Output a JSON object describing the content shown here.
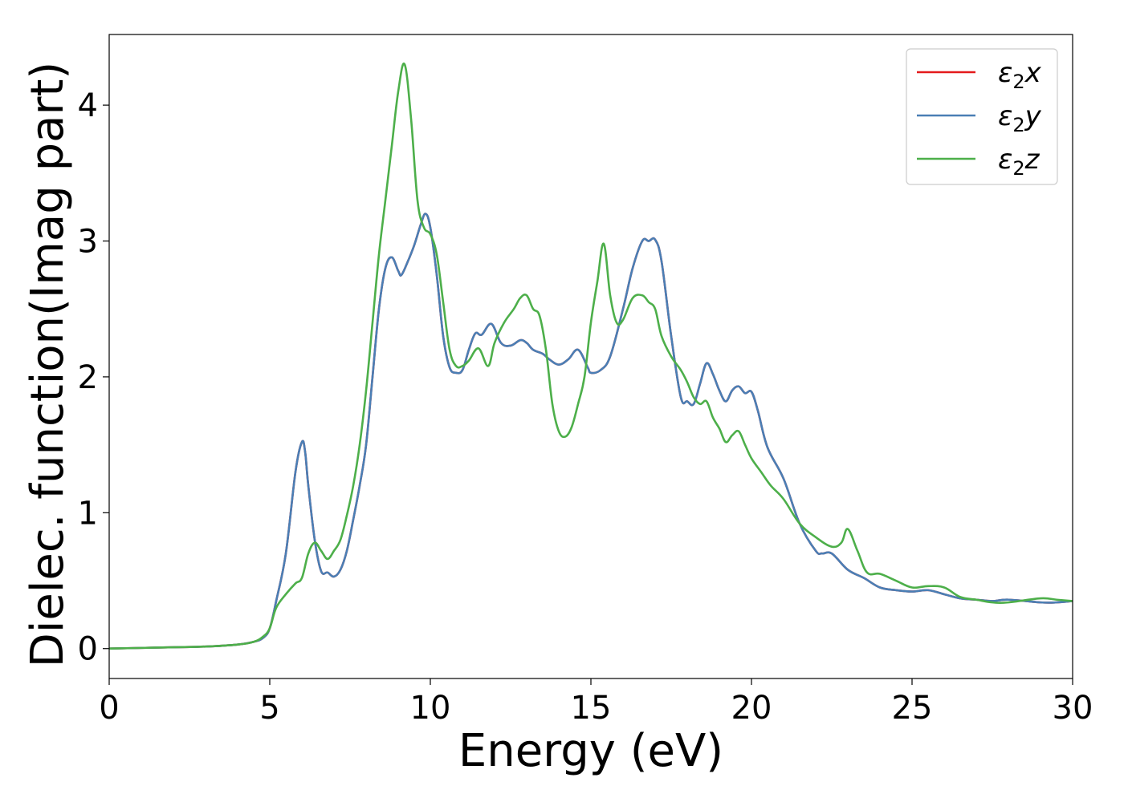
{
  "chart_data": {
    "type": "line",
    "title": "",
    "xlabel": "Energy (eV)",
    "ylabel": "Dielec. function(Imag part)",
    "xlim": [
      0,
      30
    ],
    "ylim": [
      -0.22,
      4.52
    ],
    "xticks": [
      0,
      5,
      10,
      15,
      20,
      25,
      30
    ],
    "xtick_labels": [
      "0",
      "5",
      "10",
      "15",
      "20",
      "25",
      "30"
    ],
    "yticks": [
      0,
      1,
      2,
      3,
      4
    ],
    "ytick_labels": [
      "0",
      "1",
      "2",
      "3",
      "4"
    ],
    "grid": false,
    "legend_position": "top-right",
    "series": [
      {
        "name": "ε2x",
        "legend_base": "ε",
        "legend_sub": "2",
        "legend_suffix": "x",
        "color": "#e41a1c",
        "x": [
          0,
          1,
          2,
          3,
          4,
          4.5,
          4.8,
          5.0,
          5.2,
          5.5,
          5.8,
          6.0,
          6.1,
          6.2,
          6.4,
          6.6,
          6.8,
          7.0,
          7.2,
          7.4,
          7.6,
          7.8,
          8.0,
          8.2,
          8.4,
          8.6,
          8.8,
          9.0,
          9.1,
          9.3,
          9.5,
          9.7,
          9.85,
          10.0,
          10.2,
          10.4,
          10.6,
          10.8,
          11.0,
          11.2,
          11.4,
          11.6,
          11.9,
          12.2,
          12.5,
          12.8,
          13.0,
          13.2,
          13.5,
          13.7,
          14.0,
          14.3,
          14.6,
          14.9,
          15.0,
          15.3,
          15.6,
          16.0,
          16.3,
          16.6,
          16.8,
          17.0,
          17.2,
          17.5,
          17.8,
          18.0,
          18.2,
          18.4,
          18.6,
          18.8,
          19.0,
          19.2,
          19.4,
          19.6,
          19.8,
          20.0,
          20.2,
          20.5,
          21.0,
          21.5,
          22.0,
          22.2,
          22.5,
          23.0,
          23.5,
          24.0,
          24.5,
          25.0,
          25.5,
          26.0,
          26.5,
          27.0,
          27.5,
          28.0,
          29.0,
          29.5,
          30.0
        ],
        "values": [
          0.0,
          0.005,
          0.01,
          0.015,
          0.03,
          0.05,
          0.08,
          0.15,
          0.35,
          0.7,
          1.3,
          1.52,
          1.45,
          1.2,
          0.8,
          0.57,
          0.56,
          0.53,
          0.58,
          0.72,
          0.95,
          1.2,
          1.5,
          2.0,
          2.5,
          2.8,
          2.88,
          2.78,
          2.75,
          2.85,
          2.97,
          3.12,
          3.2,
          3.1,
          2.75,
          2.3,
          2.07,
          2.03,
          2.05,
          2.2,
          2.32,
          2.31,
          2.39,
          2.25,
          2.23,
          2.27,
          2.25,
          2.2,
          2.17,
          2.13,
          2.09,
          2.13,
          2.2,
          2.07,
          2.03,
          2.05,
          2.15,
          2.5,
          2.8,
          3.0,
          3.0,
          3.01,
          2.85,
          2.3,
          1.85,
          1.82,
          1.8,
          1.95,
          2.1,
          2.02,
          1.9,
          1.82,
          1.9,
          1.93,
          1.88,
          1.89,
          1.75,
          1.48,
          1.25,
          0.92,
          0.72,
          0.7,
          0.7,
          0.58,
          0.52,
          0.45,
          0.43,
          0.42,
          0.43,
          0.4,
          0.37,
          0.36,
          0.35,
          0.36,
          0.34,
          0.34,
          0.35
        ]
      },
      {
        "name": "ε2y",
        "legend_base": "ε",
        "legend_sub": "2",
        "legend_suffix": "y",
        "color": "#4a7fb5",
        "x": [
          0,
          1,
          2,
          3,
          4,
          4.5,
          4.8,
          5.0,
          5.2,
          5.5,
          5.8,
          6.0,
          6.1,
          6.2,
          6.4,
          6.6,
          6.8,
          7.0,
          7.2,
          7.4,
          7.6,
          7.8,
          8.0,
          8.2,
          8.4,
          8.6,
          8.8,
          9.0,
          9.1,
          9.3,
          9.5,
          9.7,
          9.85,
          10.0,
          10.2,
          10.4,
          10.6,
          10.8,
          11.0,
          11.2,
          11.4,
          11.6,
          11.9,
          12.2,
          12.5,
          12.8,
          13.0,
          13.2,
          13.5,
          13.7,
          14.0,
          14.3,
          14.6,
          14.9,
          15.0,
          15.3,
          15.6,
          16.0,
          16.3,
          16.6,
          16.8,
          17.0,
          17.2,
          17.5,
          17.8,
          18.0,
          18.2,
          18.4,
          18.6,
          18.8,
          19.0,
          19.2,
          19.4,
          19.6,
          19.8,
          20.0,
          20.2,
          20.5,
          21.0,
          21.5,
          22.0,
          22.2,
          22.5,
          23.0,
          23.5,
          24.0,
          24.5,
          25.0,
          25.5,
          26.0,
          26.5,
          27.0,
          27.5,
          28.0,
          29.0,
          29.5,
          30.0
        ],
        "values": [
          0.0,
          0.005,
          0.01,
          0.015,
          0.03,
          0.05,
          0.08,
          0.15,
          0.35,
          0.7,
          1.3,
          1.52,
          1.45,
          1.2,
          0.8,
          0.57,
          0.56,
          0.53,
          0.58,
          0.72,
          0.95,
          1.2,
          1.5,
          2.0,
          2.5,
          2.8,
          2.88,
          2.78,
          2.75,
          2.85,
          2.97,
          3.12,
          3.2,
          3.1,
          2.75,
          2.3,
          2.07,
          2.03,
          2.05,
          2.2,
          2.32,
          2.31,
          2.39,
          2.25,
          2.23,
          2.27,
          2.25,
          2.2,
          2.17,
          2.13,
          2.09,
          2.13,
          2.2,
          2.07,
          2.03,
          2.05,
          2.15,
          2.5,
          2.8,
          3.0,
          3.0,
          3.01,
          2.85,
          2.3,
          1.85,
          1.82,
          1.8,
          1.95,
          2.1,
          2.02,
          1.9,
          1.82,
          1.9,
          1.93,
          1.88,
          1.89,
          1.75,
          1.48,
          1.25,
          0.92,
          0.72,
          0.7,
          0.7,
          0.58,
          0.52,
          0.45,
          0.43,
          0.42,
          0.43,
          0.4,
          0.37,
          0.36,
          0.35,
          0.36,
          0.34,
          0.34,
          0.35
        ]
      },
      {
        "name": "ε2z",
        "legend_base": "ε",
        "legend_sub": "2",
        "legend_suffix": "z",
        "color": "#4daf4a",
        "x": [
          0,
          1,
          2,
          3,
          4,
          4.5,
          4.8,
          5.0,
          5.2,
          5.5,
          5.8,
          6.0,
          6.2,
          6.4,
          6.6,
          6.8,
          7.0,
          7.2,
          7.4,
          7.6,
          7.8,
          8.0,
          8.2,
          8.4,
          8.6,
          8.8,
          9.0,
          9.2,
          9.4,
          9.6,
          9.8,
          10.0,
          10.2,
          10.4,
          10.6,
          10.8,
          11.0,
          11.2,
          11.5,
          11.8,
          12.0,
          12.3,
          12.6,
          12.8,
          13.0,
          13.2,
          13.4,
          13.6,
          13.8,
          14.0,
          14.2,
          14.4,
          14.6,
          14.8,
          15.0,
          15.2,
          15.4,
          15.6,
          15.8,
          16.0,
          16.3,
          16.6,
          16.8,
          17.0,
          17.2,
          17.5,
          17.8,
          18.0,
          18.2,
          18.4,
          18.6,
          18.8,
          19.0,
          19.2,
          19.4,
          19.6,
          19.8,
          20.0,
          20.3,
          20.6,
          21.0,
          21.5,
          22.0,
          22.5,
          22.8,
          23.0,
          23.3,
          23.6,
          24.0,
          24.5,
          25.0,
          25.5,
          26.0,
          26.5,
          27.0,
          27.5,
          28.0,
          29.0,
          29.5,
          30.0
        ],
        "values": [
          0.0,
          0.005,
          0.01,
          0.015,
          0.03,
          0.05,
          0.09,
          0.15,
          0.3,
          0.4,
          0.48,
          0.52,
          0.7,
          0.78,
          0.72,
          0.66,
          0.72,
          0.8,
          0.98,
          1.2,
          1.5,
          1.9,
          2.4,
          2.9,
          3.3,
          3.7,
          4.1,
          4.3,
          3.9,
          3.3,
          3.1,
          3.05,
          2.9,
          2.55,
          2.2,
          2.08,
          2.08,
          2.12,
          2.21,
          2.08,
          2.25,
          2.4,
          2.5,
          2.58,
          2.6,
          2.5,
          2.45,
          2.2,
          1.8,
          1.6,
          1.56,
          1.63,
          1.8,
          2.0,
          2.4,
          2.7,
          2.98,
          2.6,
          2.4,
          2.42,
          2.58,
          2.6,
          2.55,
          2.5,
          2.3,
          2.15,
          2.05,
          1.96,
          1.85,
          1.8,
          1.82,
          1.7,
          1.62,
          1.52,
          1.57,
          1.6,
          1.5,
          1.4,
          1.3,
          1.2,
          1.1,
          0.92,
          0.82,
          0.75,
          0.78,
          0.88,
          0.72,
          0.56,
          0.55,
          0.5,
          0.45,
          0.46,
          0.45,
          0.38,
          0.36,
          0.34,
          0.34,
          0.37,
          0.36,
          0.35
        ]
      }
    ]
  }
}
